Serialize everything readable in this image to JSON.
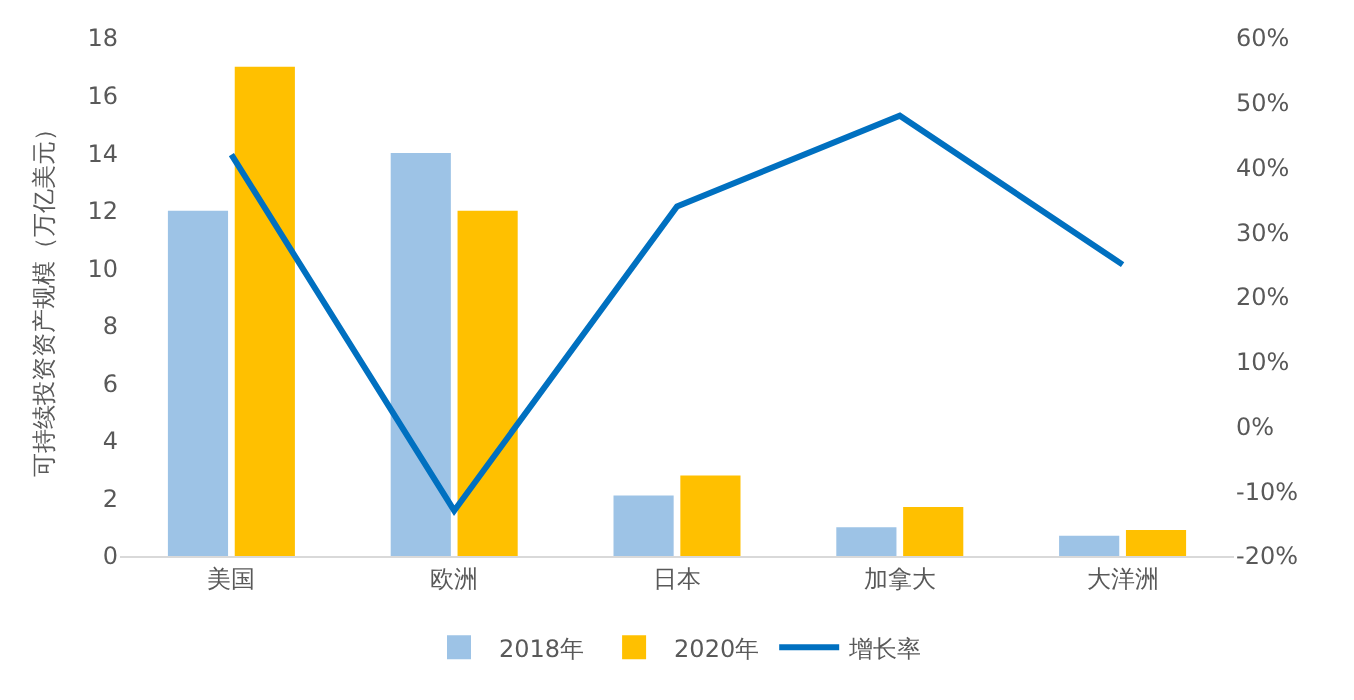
{
  "chart_data": {
    "type": "bar",
    "ylabel": "可持续投资资产规模（万亿美元）",
    "categories": [
      "美国",
      "欧洲",
      "日本",
      "加拿大",
      "大洋洲"
    ],
    "series": [
      {
        "name": "2018年",
        "color": "#9dc3e6",
        "values": [
          12,
          14,
          2.1,
          1.0,
          0.7
        ]
      },
      {
        "name": "2020年",
        "color": "#ffc000",
        "values": [
          17,
          12,
          2.8,
          1.7,
          0.9
        ]
      },
      {
        "name": "增长率",
        "type": "line",
        "axis": "y2",
        "color": "#0070c0",
        "values": [
          42,
          -13,
          34,
          48,
          25
        ]
      }
    ],
    "ylim": [
      0,
      18
    ],
    "yticks": [
      0,
      2,
      4,
      6,
      8,
      10,
      12,
      14,
      16,
      18
    ],
    "y2lim": [
      -20,
      60
    ],
    "y2ticks": [
      {
        "value": -20,
        "label": "-20%"
      },
      {
        "value": -10,
        "label": "-10%"
      },
      {
        "value": 0,
        "label": "0%"
      },
      {
        "value": 10,
        "label": "10%"
      },
      {
        "value": 20,
        "label": "20%"
      },
      {
        "value": 30,
        "label": "30%"
      },
      {
        "value": 40,
        "label": "40%"
      },
      {
        "value": 50,
        "label": "50%"
      },
      {
        "value": 60,
        "label": "60%"
      }
    ],
    "grid": false,
    "legend": "bottom",
    "marker": "none",
    "line_style": "solid"
  }
}
